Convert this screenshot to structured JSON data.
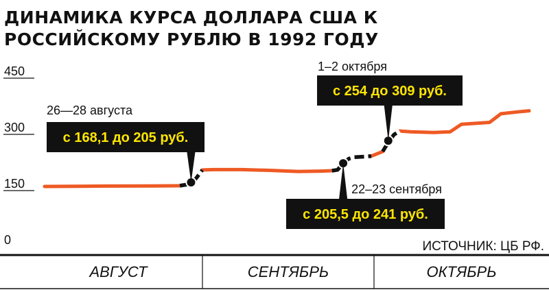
{
  "chart_data": {
    "type": "line",
    "title": "ДИНАМИКА КУРСА ДОЛЛАРА США К РОССИЙСКОМУ РУБЛЮ В 1992 ГОДУ",
    "source": "ИСТОЧНИК: ЦБ РФ.",
    "xlabel": "",
    "ylabel": "",
    "ylim": [
      0,
      450
    ],
    "yticks": [
      0,
      150,
      300,
      450
    ],
    "x_months": [
      "АВГУСТ",
      "СЕНТЯБРЬ",
      "ОКТЯБРЬ"
    ],
    "x_range": [
      "1992-08-01",
      "1992-10-31"
    ],
    "grid": false,
    "series": [
      {
        "values": [
          [
            "1992-08-01",
            161
          ],
          [
            "1992-08-06",
            161.5
          ],
          [
            "1992-08-12",
            162
          ],
          [
            "1992-08-20",
            162.5
          ],
          [
            "1992-08-25",
            163
          ],
          [
            "1992-08-27",
            168
          ],
          [
            "1992-08-28",
            185
          ],
          [
            "1992-08-29",
            205
          ],
          [
            "1992-08-31",
            206
          ],
          [
            "1992-09-05",
            206
          ],
          [
            "1992-09-10",
            204
          ],
          [
            "1992-09-15",
            201
          ],
          [
            "1992-09-19",
            202
          ],
          [
            "1992-09-21",
            203
          ],
          [
            "1992-09-22",
            205.5
          ],
          [
            "1992-09-23",
            223
          ],
          [
            "1992-09-24",
            235
          ],
          [
            "1992-09-25",
            239
          ],
          [
            "1992-09-27",
            241
          ],
          [
            "1992-09-28",
            242
          ],
          [
            "1992-09-30",
            254
          ],
          [
            "1992-10-01",
            279
          ],
          [
            "1992-10-02",
            299
          ],
          [
            "1992-10-03",
            309
          ],
          [
            "1992-10-05",
            307
          ],
          [
            "1992-10-09",
            305
          ],
          [
            "1992-10-12",
            307
          ],
          [
            "1992-10-14",
            327
          ],
          [
            "1992-10-17",
            330
          ],
          [
            "1992-10-19",
            332
          ],
          [
            "1992-10-21",
            355
          ],
          [
            "1992-10-24",
            360
          ],
          [
            "1992-10-26",
            363
          ]
        ],
        "highlight_segments": [
          [
            "1992-08-25",
            "1992-08-29"
          ],
          [
            "1992-09-21",
            "1992-09-28"
          ],
          [
            "1992-09-30",
            "1992-10-03"
          ]
        ]
      }
    ],
    "annotations": [
      {
        "date_label": "26—28 августа",
        "text": "с 168,1 до 205 руб.",
        "point": [
          "1992-08-27",
          172
        ]
      },
      {
        "date_label": "22–23 сентября",
        "text": "с 205,5 до 241 руб.",
        "point": [
          "1992-09-23",
          223
        ]
      },
      {
        "date_label": "1–2 октября",
        "text": "с 254 до 309 руб.",
        "point": [
          "1992-10-01",
          283
        ]
      }
    ],
    "colors": {
      "line": "#ee5a24",
      "highlight": "#111111",
      "callout_bg": "#111111",
      "callout_text": "#ffe600",
      "axis": "#111111"
    }
  }
}
